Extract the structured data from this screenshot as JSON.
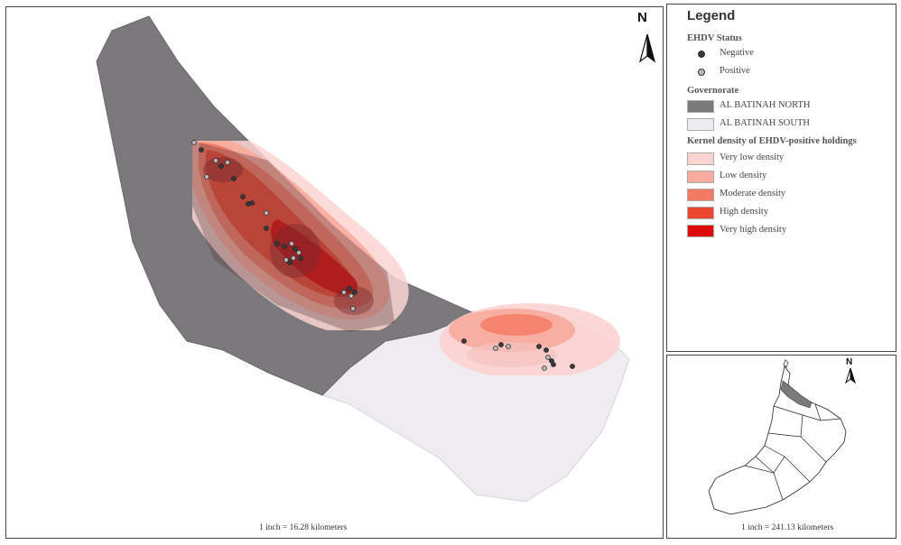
{
  "main_map": {
    "scale_text": "1 inch = 16.28 kilometers",
    "north_label": "N"
  },
  "legend": {
    "title": "Legend",
    "status": {
      "heading": "EHDV Status",
      "items": [
        {
          "label": "Negative",
          "color": "#3a3a3a"
        },
        {
          "label": "Positive",
          "color": "#b8b8b8"
        }
      ]
    },
    "governorate": {
      "heading": "Governorate",
      "items": [
        {
          "label": "AL BATINAH NORTH",
          "color": "#7b797c"
        },
        {
          "label": "AL BATINAH SOUTH",
          "color": "#eeebf1"
        }
      ]
    },
    "density": {
      "heading": "Kernel density of EHDV-positive holdings",
      "items": [
        {
          "label": "Very low density",
          "color": "#fbd3d0"
        },
        {
          "label": "Low density",
          "color": "#f8aa9c"
        },
        {
          "label": "Moderate density",
          "color": "#f47a63"
        },
        {
          "label": "High density",
          "color": "#eb4630"
        },
        {
          "label": "Very high density",
          "color": "#dd0a0a"
        }
      ]
    }
  },
  "inset_map": {
    "scale_text": "1 inch = 241.13 kilometers",
    "north_label": "N"
  }
}
